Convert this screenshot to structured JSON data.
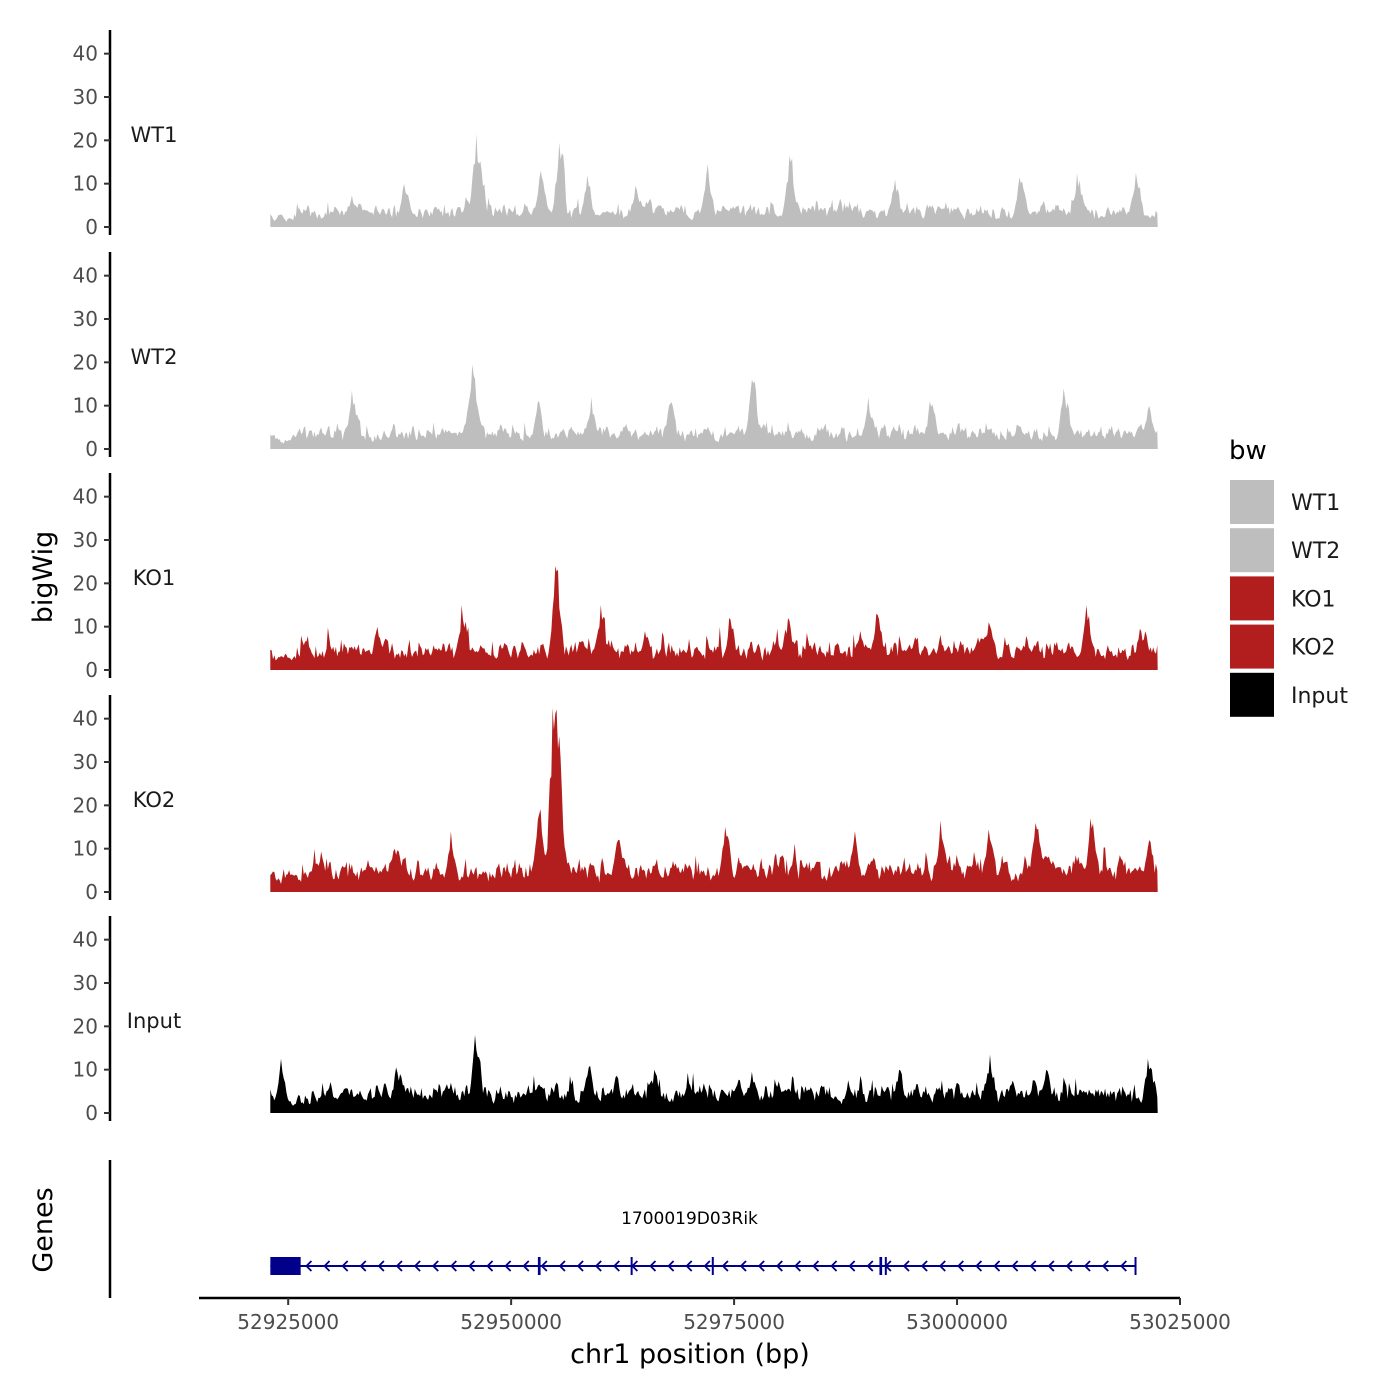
{
  "chart_data": {
    "type": "area",
    "chromosome": "chr1",
    "xlabel": "chr1 position (bp)",
    "ylabel": "bigWig",
    "gene_track_label": "Genes",
    "xlim": [
      52915000,
      53025000
    ],
    "x_ticks": [
      52925000,
      52950000,
      52975000,
      53000000,
      53025000
    ],
    "x_tick_labels": [
      "52925000",
      "52950000",
      "52975000",
      "53000000",
      "53025000"
    ],
    "ylim": [
      0,
      45
    ],
    "y_ticks": [
      0,
      10,
      20,
      30,
      40
    ],
    "y_tick_labels": [
      "0",
      "10",
      "20",
      "30",
      "40"
    ],
    "data_range": [
      52923000,
      53022500
    ],
    "tracks": [
      {
        "name": "WT1",
        "color": "#bebebe",
        "baseline": 3.5,
        "peaks": [
          {
            "x": 52946100,
            "y": 21.5
          },
          {
            "x": 52955400,
            "y": 19.5
          },
          {
            "x": 52953300,
            "y": 13
          },
          {
            "x": 52981200,
            "y": 16.5
          },
          {
            "x": 52972000,
            "y": 14.5
          },
          {
            "x": 52958500,
            "y": 12
          },
          {
            "x": 53013500,
            "y": 12.5
          },
          {
            "x": 53007000,
            "y": 11.5
          },
          {
            "x": 52993000,
            "y": 11
          },
          {
            "x": 52964000,
            "y": 9.5
          },
          {
            "x": 53020000,
            "y": 12.5
          },
          {
            "x": 52938000,
            "y": 10
          }
        ]
      },
      {
        "name": "WT2",
        "color": "#bebebe",
        "baseline": 3.5,
        "peaks": [
          {
            "x": 52945600,
            "y": 19.5
          },
          {
            "x": 52932200,
            "y": 13.5
          },
          {
            "x": 52967800,
            "y": 10.5
          },
          {
            "x": 52977000,
            "y": 16
          },
          {
            "x": 52959000,
            "y": 12
          },
          {
            "x": 53012000,
            "y": 14
          },
          {
            "x": 52990000,
            "y": 12
          },
          {
            "x": 53021500,
            "y": 10
          },
          {
            "x": 52953000,
            "y": 11
          },
          {
            "x": 52997000,
            "y": 11
          }
        ]
      },
      {
        "name": "KO1",
        "color": "#b21e1e",
        "baseline": 4.5,
        "peaks": [
          {
            "x": 52955000,
            "y": 24
          },
          {
            "x": 52944500,
            "y": 15
          },
          {
            "x": 52960000,
            "y": 15
          },
          {
            "x": 52981000,
            "y": 12
          },
          {
            "x": 52991000,
            "y": 13
          },
          {
            "x": 53003500,
            "y": 11
          },
          {
            "x": 53014500,
            "y": 15
          },
          {
            "x": 52935000,
            "y": 10
          },
          {
            "x": 52965000,
            "y": 9
          },
          {
            "x": 52974500,
            "y": 12
          },
          {
            "x": 53020500,
            "y": 9.5
          }
        ]
      },
      {
        "name": "KO2",
        "color": "#b21e1e",
        "baseline": 5,
        "peaks": [
          {
            "x": 52954700,
            "y": 42.5
          },
          {
            "x": 52955300,
            "y": 33
          },
          {
            "x": 52953100,
            "y": 18
          },
          {
            "x": 52943200,
            "y": 14
          },
          {
            "x": 52974000,
            "y": 15
          },
          {
            "x": 52998200,
            "y": 16.5
          },
          {
            "x": 53003500,
            "y": 14.5
          },
          {
            "x": 53008800,
            "y": 16
          },
          {
            "x": 53015000,
            "y": 17
          },
          {
            "x": 52988500,
            "y": 14
          },
          {
            "x": 52962000,
            "y": 12
          },
          {
            "x": 52937000,
            "y": 10
          },
          {
            "x": 52928500,
            "y": 7
          },
          {
            "x": 53021500,
            "y": 12
          }
        ]
      },
      {
        "name": "Input",
        "color": "#000000",
        "baseline": 4.5,
        "peaks": [
          {
            "x": 52946000,
            "y": 18
          },
          {
            "x": 53003700,
            "y": 13.5
          },
          {
            "x": 53021400,
            "y": 12.5
          },
          {
            "x": 52924200,
            "y": 12.5
          },
          {
            "x": 52958700,
            "y": 10.5
          },
          {
            "x": 52966000,
            "y": 10
          },
          {
            "x": 52993500,
            "y": 10
          },
          {
            "x": 53010000,
            "y": 10
          },
          {
            "x": 52977000,
            "y": 9.5
          },
          {
            "x": 52937500,
            "y": 9
          }
        ]
      }
    ],
    "legend": {
      "title": "bw",
      "position": "right",
      "entries": [
        {
          "label": "WT1",
          "color": "#bebebe"
        },
        {
          "label": "WT2",
          "color": "#bebebe"
        },
        {
          "label": "KO1",
          "color": "#b21e1e"
        },
        {
          "label": "KO2",
          "color": "#b21e1e"
        },
        {
          "label": "Input",
          "color": "#000000"
        }
      ]
    },
    "gene": {
      "name": "1700019D03Rik",
      "strand": "-",
      "start": 52923000,
      "end": 53020000,
      "color": "#00008b",
      "exons": [
        [
          52923000,
          52926400
        ],
        [
          52953000,
          52953300
        ],
        [
          52963400,
          52963600
        ],
        [
          52972500,
          52972650
        ],
        [
          52991300,
          52991600
        ],
        [
          52991900,
          52992100
        ],
        [
          53019900,
          53020000
        ]
      ]
    }
  }
}
